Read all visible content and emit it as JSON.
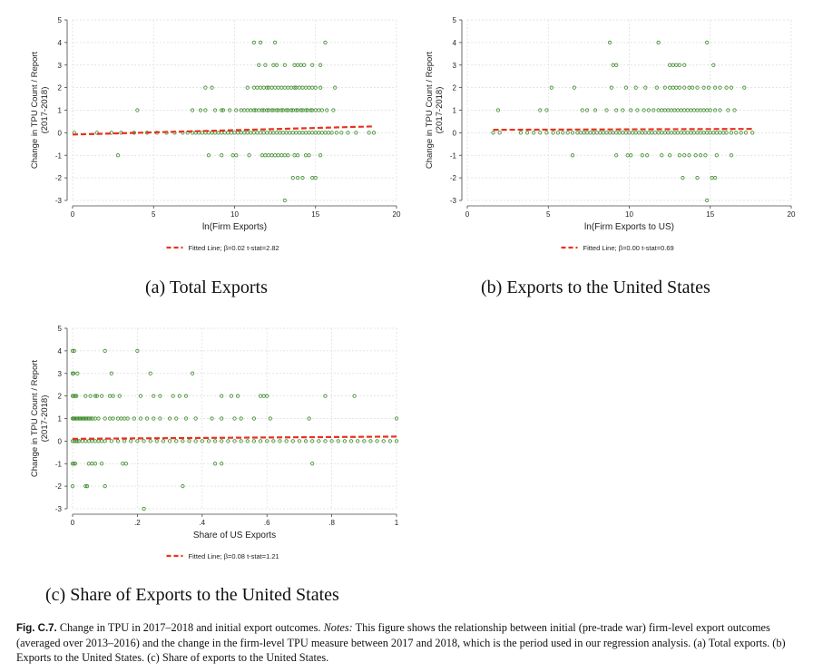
{
  "figure": {
    "label": "Fig. C.7.",
    "title": "Change in TPU in 2017–2018 and initial export outcomes.",
    "notes_label": "Notes:",
    "notes_text": "This figure shows the relationship between initial (pre-trade war) firm-level export outcomes (averaged over 2013–2016) and the change in the firm-level TPU measure between 2017 and 2018, which is the period used in our regression analysis. (a) Total exports. (b) Exports to the United States. (c) Share of exports to the United States."
  },
  "colors": {
    "marker": "#3c8c2a",
    "fit_line": "#e8321e",
    "grid": "#dcdcdc",
    "axis": "#444444"
  },
  "chart_data": [
    {
      "type": "scatter",
      "subcaption": "(a) Total Exports",
      "xlabel": "ln(Firm Exports)",
      "ylabel_line1": "Change in TPU Count / Report",
      "ylabel_line2": "(2017-2018)",
      "xlim": [
        0,
        20
      ],
      "ylim": [
        -3,
        5
      ],
      "xticks": [
        0,
        5,
        10,
        15,
        20
      ],
      "yticks": [
        -3,
        -2,
        -1,
        0,
        1,
        2,
        3,
        4,
        5
      ],
      "grid": true,
      "legend": {
        "label": "Fitted Line;  β=0.02  t-stat=2.82",
        "placement": "bottom-center"
      },
      "fit": {
        "beta": 0.02,
        "x_range": [
          0,
          18.5
        ],
        "y_range": [
          -0.08,
          0.28
        ]
      },
      "series": [
        {
          "y": 4,
          "x": [
            11.2,
            11.6,
            12.5,
            15.6
          ]
        },
        {
          "y": 3,
          "x": [
            11.5,
            11.9,
            12.4,
            12.6,
            13.1,
            13.7,
            13.9,
            14.1,
            14.3,
            14.8,
            15.3
          ]
        },
        {
          "y": 2,
          "x": [
            8.2,
            8.6,
            10.8,
            11.2,
            11.4,
            11.6,
            11.8,
            12.0,
            12.1,
            12.3,
            12.5,
            12.7,
            12.9,
            13.1,
            13.3,
            13.5,
            13.7,
            13.8,
            14.0,
            14.2,
            14.4,
            14.6,
            14.8,
            15.0,
            15.3,
            16.2
          ]
        },
        {
          "y": 1,
          "x": [
            4.0,
            7.4,
            7.9,
            8.2,
            8.8,
            9.2,
            9.3,
            9.7,
            10.1,
            10.4,
            10.6,
            10.8,
            11.0,
            11.2,
            11.3,
            11.5,
            11.7,
            11.8,
            12.0,
            12.1,
            12.3,
            12.4,
            12.6,
            12.7,
            12.9,
            13.0,
            13.2,
            13.3,
            13.5,
            13.6,
            13.8,
            13.9,
            14.1,
            14.2,
            14.4,
            14.5,
            14.7,
            14.8,
            15.0,
            15.2,
            15.4,
            15.7,
            16.1
          ]
        },
        {
          "y": 0,
          "x": [
            0.1,
            1.5,
            2.4,
            3.0,
            3.8,
            4.6,
            5.2,
            5.8,
            6.3,
            6.8,
            7.1,
            7.4,
            7.6,
            7.8,
            8.0,
            8.2,
            8.4,
            8.6,
            8.8,
            9.0,
            9.2,
            9.4,
            9.6,
            9.8,
            10.0,
            10.2,
            10.4,
            10.6,
            10.8,
            11.0,
            11.2,
            11.4,
            11.6,
            11.8,
            12.0,
            12.2,
            12.4,
            12.6,
            12.8,
            13.0,
            13.2,
            13.4,
            13.6,
            13.8,
            14.0,
            14.2,
            14.4,
            14.6,
            14.8,
            15.0,
            15.2,
            15.4,
            15.6,
            15.8,
            16.0,
            16.3,
            16.6,
            17.0,
            17.5,
            18.3,
            18.6
          ]
        },
        {
          "y": -1,
          "x": [
            2.8,
            8.4,
            9.2,
            9.9,
            10.1,
            10.9,
            11.7,
            11.9,
            12.1,
            12.3,
            12.5,
            12.7,
            12.9,
            13.1,
            13.3,
            13.7,
            13.9,
            14.4,
            14.6,
            15.3
          ]
        },
        {
          "y": -2,
          "x": [
            13.6,
            13.9,
            14.2,
            14.8,
            15.0
          ]
        },
        {
          "y": -3,
          "x": [
            13.1
          ]
        }
      ]
    },
    {
      "type": "scatter",
      "subcaption": "(b) Exports to the United States",
      "xlabel": "ln(Firm Exports to US)",
      "ylabel_line1": "Change in TPU Count / Report",
      "ylabel_line2": "(2017-2018)",
      "xlim": [
        0,
        20
      ],
      "ylim": [
        -3,
        5
      ],
      "xticks": [
        0,
        5,
        10,
        15,
        20
      ],
      "yticks": [
        -3,
        -2,
        -1,
        0,
        1,
        2,
        3,
        4,
        5
      ],
      "grid": true,
      "legend": {
        "label": "Fitted Line;  β=0.00  t-stat=0.69",
        "placement": "bottom-center"
      },
      "fit": {
        "beta": 0.0,
        "x_range": [
          1.6,
          17.6
        ],
        "y_range": [
          0.13,
          0.17
        ]
      },
      "series": [
        {
          "y": 4,
          "x": [
            8.8,
            11.8,
            14.8
          ]
        },
        {
          "y": 3,
          "x": [
            9.0,
            9.2,
            12.5,
            12.7,
            12.9,
            13.1,
            13.4,
            15.2
          ]
        },
        {
          "y": 2,
          "x": [
            5.2,
            6.6,
            8.9,
            9.8,
            10.4,
            11.0,
            11.7,
            12.2,
            12.5,
            12.7,
            12.9,
            13.1,
            13.4,
            13.7,
            13.9,
            14.2,
            14.6,
            14.9,
            15.3,
            15.6,
            16.0,
            16.3,
            17.1
          ]
        },
        {
          "y": 1,
          "x": [
            1.9,
            4.5,
            4.9,
            7.1,
            7.4,
            7.9,
            8.6,
            9.2,
            9.6,
            10.1,
            10.5,
            10.9,
            11.2,
            11.5,
            11.8,
            12.0,
            12.2,
            12.4,
            12.6,
            12.8,
            13.0,
            13.2,
            13.4,
            13.6,
            13.8,
            14.0,
            14.2,
            14.4,
            14.6,
            14.8,
            15.0,
            15.3,
            15.6,
            16.1,
            16.5
          ]
        },
        {
          "y": 0,
          "x": [
            1.6,
            2.0,
            3.3,
            3.7,
            4.1,
            4.5,
            4.9,
            5.3,
            5.6,
            5.9,
            6.2,
            6.5,
            6.8,
            7.0,
            7.2,
            7.4,
            7.6,
            7.8,
            8.0,
            8.2,
            8.4,
            8.6,
            8.8,
            9.0,
            9.2,
            9.4,
            9.6,
            9.8,
            10.0,
            10.2,
            10.4,
            10.6,
            10.8,
            11.0,
            11.2,
            11.4,
            11.6,
            11.8,
            12.0,
            12.2,
            12.4,
            12.6,
            12.8,
            13.0,
            13.2,
            13.4,
            13.6,
            13.8,
            14.0,
            14.2,
            14.4,
            14.6,
            14.8,
            15.0,
            15.2,
            15.4,
            15.6,
            15.8,
            16.0,
            16.3,
            16.6,
            16.9,
            17.2,
            17.6
          ]
        },
        {
          "y": -1,
          "x": [
            6.5,
            9.2,
            9.9,
            10.1,
            10.8,
            11.1,
            12.0,
            12.5,
            13.1,
            13.4,
            13.7,
            14.1,
            14.4,
            14.7,
            15.4,
            16.3
          ]
        },
        {
          "y": -2,
          "x": [
            13.3,
            14.2,
            15.1,
            15.3
          ]
        },
        {
          "y": -3,
          "x": [
            14.8
          ]
        }
      ]
    },
    {
      "type": "scatter",
      "subcaption": "(c) Share of Exports to the United States",
      "xlabel": "Share of US Exports",
      "ylabel_line1": "Change in TPU Count / Report",
      "ylabel_line2": "(2017-2018)",
      "xlim": [
        0,
        1
      ],
      "ylim": [
        -3,
        5
      ],
      "xticks": [
        0,
        0.2,
        0.4,
        0.6,
        0.8,
        1
      ],
      "xtick_labels": [
        "0",
        ".2",
        ".4",
        ".6",
        ".8",
        "1"
      ],
      "yticks": [
        -3,
        -2,
        -1,
        0,
        1,
        2,
        3,
        4,
        5
      ],
      "grid": true,
      "legend": {
        "label": "Fitted Line;  β=0.08  t-stat=1.21",
        "placement": "bottom-center"
      },
      "fit": {
        "beta": 0.08,
        "x_range": [
          0,
          1
        ],
        "y_range": [
          0.1,
          0.2
        ]
      },
      "series": [
        {
          "y": 4,
          "x": [
            0.0,
            0.005,
            0.1,
            0.2
          ]
        },
        {
          "y": 3,
          "x": [
            0.0,
            0.003,
            0.015,
            0.12,
            0.24,
            0.37
          ]
        },
        {
          "y": 2,
          "x": [
            0.0,
            0.004,
            0.008,
            0.012,
            0.04,
            0.055,
            0.07,
            0.075,
            0.09,
            0.115,
            0.125,
            0.145,
            0.21,
            0.25,
            0.27,
            0.31,
            0.33,
            0.35,
            0.46,
            0.49,
            0.51,
            0.58,
            0.59,
            0.6,
            0.78,
            0.87
          ]
        },
        {
          "y": 1,
          "x": [
            0.0,
            0.003,
            0.006,
            0.01,
            0.014,
            0.018,
            0.022,
            0.026,
            0.03,
            0.034,
            0.038,
            0.042,
            0.046,
            0.05,
            0.056,
            0.062,
            0.07,
            0.08,
            0.1,
            0.115,
            0.125,
            0.14,
            0.15,
            0.16,
            0.17,
            0.19,
            0.21,
            0.23,
            0.25,
            0.27,
            0.3,
            0.32,
            0.35,
            0.38,
            0.43,
            0.46,
            0.5,
            0.52,
            0.56,
            0.61,
            0.73,
            1.0
          ]
        },
        {
          "y": 0,
          "x": [
            0.0,
            0.005,
            0.01,
            0.015,
            0.02,
            0.03,
            0.04,
            0.05,
            0.06,
            0.07,
            0.08,
            0.09,
            0.1,
            0.12,
            0.14,
            0.16,
            0.18,
            0.2,
            0.22,
            0.24,
            0.26,
            0.28,
            0.3,
            0.32,
            0.34,
            0.36,
            0.38,
            0.4,
            0.42,
            0.44,
            0.46,
            0.48,
            0.5,
            0.52,
            0.54,
            0.56,
            0.58,
            0.6,
            0.62,
            0.64,
            0.66,
            0.68,
            0.7,
            0.72,
            0.74,
            0.76,
            0.78,
            0.8,
            0.82,
            0.84,
            0.86,
            0.88,
            0.9,
            0.92,
            0.94,
            0.96,
            0.98,
            1.0
          ]
        },
        {
          "y": -1,
          "x": [
            0.0,
            0.004,
            0.008,
            0.05,
            0.06,
            0.07,
            0.09,
            0.155,
            0.165,
            0.44,
            0.46,
            0.74
          ]
        },
        {
          "y": -2,
          "x": [
            0.0,
            0.04,
            0.045,
            0.1,
            0.34
          ]
        },
        {
          "y": -3,
          "x": [
            0.22
          ]
        }
      ]
    }
  ]
}
